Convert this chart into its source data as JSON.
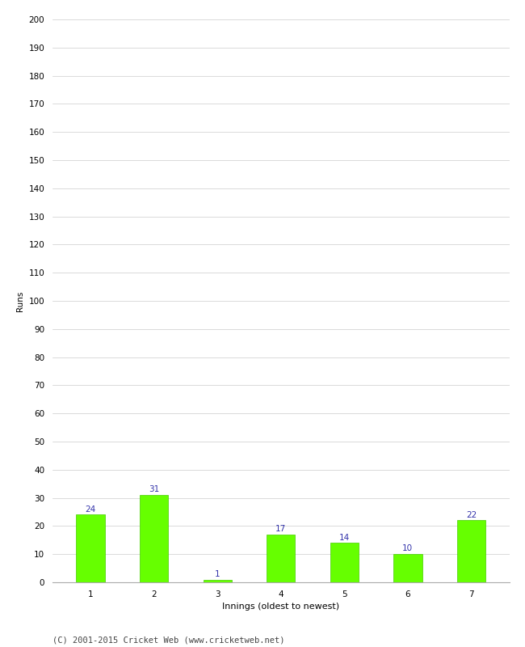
{
  "categories": [
    "1",
    "2",
    "3",
    "4",
    "5",
    "6",
    "7"
  ],
  "values": [
    24,
    31,
    1,
    17,
    14,
    10,
    22
  ],
  "bar_color": "#66ff00",
  "bar_edge_color": "#44cc00",
  "label_color": "#3333aa",
  "ylabel": "Runs",
  "xlabel": "Innings (oldest to newest)",
  "ylim": [
    0,
    200
  ],
  "yticks": [
    0,
    10,
    20,
    30,
    40,
    50,
    60,
    70,
    80,
    90,
    100,
    110,
    120,
    130,
    140,
    150,
    160,
    170,
    180,
    190,
    200
  ],
  "footer": "(C) 2001-2015 Cricket Web (www.cricketweb.net)",
  "background_color": "#ffffff",
  "grid_color": "#cccccc",
  "label_fontsize": 7.5,
  "tick_fontsize": 7.5,
  "footer_fontsize": 7.5,
  "xlabel_fontsize": 8,
  "ylabel_fontsize": 7.5,
  "bar_width": 0.45
}
